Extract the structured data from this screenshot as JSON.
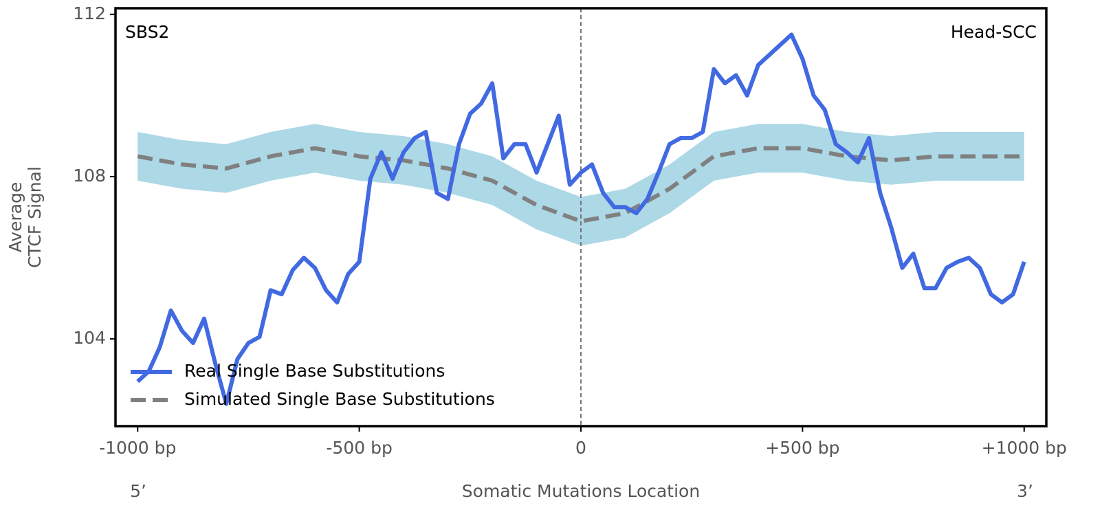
{
  "chart_data": {
    "type": "line",
    "title_left": "SBS2",
    "title_right": "Head-SCC",
    "xlabel": "Somatic Mutations Location",
    "ylabel": [
      "Average",
      "CTCF Signal"
    ],
    "x_end_labels": [
      "5’",
      "3’"
    ],
    "xlim": [
      -1050,
      1050
    ],
    "ylim": [
      101.85,
      112.15
    ],
    "xticks": [
      {
        "value": -1000,
        "label": "-1000 bp"
      },
      {
        "value": -500,
        "label": "-500 bp"
      },
      0,
      {
        "value": 500,
        "label": "+500 bp"
      },
      {
        "value": 1000,
        "label": "+1000 bp"
      }
    ],
    "yticks": [
      104,
      108,
      112
    ],
    "vline": 0,
    "legend": "lower left",
    "series": [
      {
        "name": "Real Single Base Substitutions",
        "color": "#4169e1",
        "style": "solid",
        "x": [
          -1000,
          -975,
          -950,
          -925,
          -900,
          -875,
          -850,
          -825,
          -800,
          -775,
          -750,
          -725,
          -700,
          -675,
          -650,
          -625,
          -600,
          -575,
          -550,
          -525,
          -500,
          -475,
          -450,
          -425,
          -400,
          -375,
          -350,
          -325,
          -300,
          -275,
          -250,
          -225,
          -200,
          -175,
          -150,
          -125,
          -100,
          -75,
          -50,
          -25,
          0,
          25,
          50,
          75,
          100,
          125,
          150,
          175,
          200,
          225,
          250,
          275,
          300,
          325,
          350,
          375,
          400,
          425,
          450,
          475,
          500,
          525,
          550,
          575,
          600,
          625,
          650,
          675,
          700,
          725,
          750,
          775,
          800,
          825,
          850,
          875,
          900,
          925,
          950,
          975,
          1000
        ],
        "values": [
          102.95,
          103.2,
          103.8,
          104.7,
          104.2,
          103.9,
          104.5,
          103.4,
          102.4,
          103.5,
          103.9,
          104.05,
          105.2,
          105.1,
          105.7,
          106.0,
          105.75,
          105.2,
          104.9,
          105.6,
          105.9,
          107.95,
          108.6,
          107.95,
          108.6,
          108.95,
          109.1,
          107.6,
          107.45,
          108.8,
          109.55,
          109.8,
          110.3,
          108.45,
          108.8,
          108.8,
          108.1,
          108.8,
          109.5,
          107.8,
          108.1,
          108.3,
          107.6,
          107.25,
          107.25,
          107.1,
          107.45,
          108.1,
          108.8,
          108.95,
          108.95,
          109.1,
          110.65,
          110.3,
          110.5,
          110.0,
          110.75,
          111.0,
          111.25,
          111.5,
          110.9,
          110.0,
          109.65,
          108.8,
          108.6,
          108.35,
          108.95,
          107.6,
          106.75,
          105.75,
          106.1,
          105.25,
          105.25,
          105.75,
          105.9,
          106.0,
          105.75,
          105.1,
          104.9,
          105.1,
          105.9
        ]
      },
      {
        "name": "Simulated Single Base Substitutions",
        "color": "#808080",
        "style": "dashed",
        "band_color": "#add8e6",
        "x": [
          -1000,
          -900,
          -800,
          -700,
          -600,
          -500,
          -400,
          -300,
          -200,
          -100,
          0,
          100,
          200,
          300,
          400,
          500,
          600,
          700,
          800,
          900,
          1000
        ],
        "values": [
          108.5,
          108.3,
          108.2,
          108.5,
          108.7,
          108.5,
          108.4,
          108.2,
          107.9,
          107.3,
          106.9,
          107.1,
          107.7,
          108.5,
          108.7,
          108.7,
          108.5,
          108.4,
          108.5,
          108.5,
          108.5
        ],
        "upper": [
          109.1,
          108.9,
          108.8,
          109.1,
          109.3,
          109.1,
          109.0,
          108.8,
          108.5,
          107.9,
          107.5,
          107.7,
          108.3,
          109.1,
          109.3,
          109.3,
          109.1,
          109.0,
          109.1,
          109.1,
          109.1
        ],
        "lower": [
          107.9,
          107.7,
          107.6,
          107.9,
          108.1,
          107.9,
          107.8,
          107.6,
          107.3,
          106.7,
          106.3,
          106.5,
          107.1,
          107.9,
          108.1,
          108.1,
          107.9,
          107.8,
          107.9,
          107.9,
          107.9
        ]
      }
    ]
  }
}
